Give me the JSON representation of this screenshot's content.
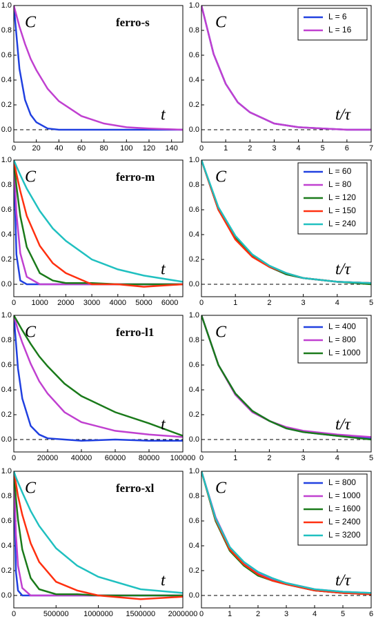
{
  "chart_data": [
    {
      "type": "line",
      "title": "ferro-s",
      "ylabel": "C",
      "xlabel": "t",
      "x": [
        0,
        5,
        10,
        15,
        20,
        30,
        40,
        60,
        80,
        100,
        120,
        150
      ],
      "xlim": [
        0,
        150
      ],
      "xticks": [
        0,
        20,
        40,
        60,
        80,
        100,
        120,
        140
      ],
      "ylim": [
        -0.1,
        1.0
      ],
      "yticks": [
        {
          "value": 0,
          "label": "0.0"
        },
        {
          "value": 0.2,
          "label": "0.2"
        },
        {
          "value": 0.4,
          "label": "0.4"
        },
        {
          "value": 0.6,
          "label": "0.6"
        },
        {
          "value": 0.8,
          "label": "0.8"
        },
        {
          "value": 1,
          "label": "1.0"
        }
      ],
      "hline": 0,
      "series": [
        {
          "name": "L = 6",
          "color": "#2040e0",
          "values": [
            1,
            0.49,
            0.24,
            0.12,
            0.06,
            0.01,
            0,
            0,
            0,
            0,
            0,
            0
          ]
        },
        {
          "name": "L = 16",
          "color": "#c040d0",
          "values": [
            1,
            0.83,
            0.69,
            0.57,
            0.48,
            0.33,
            0.23,
            0.11,
            0.05,
            0.02,
            0.01,
            0
          ]
        }
      ]
    },
    {
      "type": "line",
      "ylabel": "C",
      "xlabel": "t/τ",
      "legend": "upper right",
      "x": [
        0,
        0.5,
        1,
        1.5,
        2,
        3,
        4,
        5,
        6,
        7
      ],
      "xlim": [
        0,
        7
      ],
      "xticks": [
        0,
        1,
        2,
        3,
        4,
        5,
        6,
        7
      ],
      "ylim": [
        -0.1,
        1.0
      ],
      "yticks": [
        {
          "value": 0,
          "label": "0.0"
        },
        {
          "value": 0.2,
          "label": "0.2"
        },
        {
          "value": 0.4,
          "label": "0.4"
        },
        {
          "value": 0.6,
          "label": "0.6"
        },
        {
          "value": 0.8,
          "label": "0.8"
        },
        {
          "value": 1,
          "label": "1.0"
        }
      ],
      "hline": 0,
      "series": [
        {
          "name": "L = 6",
          "color": "#2040e0",
          "values": [
            1,
            0.61,
            0.37,
            0.22,
            0.14,
            0.05,
            0.02,
            0.01,
            0,
            0
          ]
        },
        {
          "name": "L = 16",
          "color": "#c040d0",
          "values": [
            1,
            0.61,
            0.37,
            0.22,
            0.14,
            0.05,
            0.02,
            0.01,
            0,
            0
          ]
        }
      ]
    },
    {
      "type": "line",
      "title": "ferro-m",
      "ylabel": "C",
      "xlabel": "t",
      "x": [
        0,
        100,
        250,
        500,
        1000,
        1500,
        2000,
        3000,
        4000,
        5000,
        6500
      ],
      "xlim": [
        0,
        6500
      ],
      "xticks": [
        0,
        1000,
        2000,
        3000,
        4000,
        5000,
        6000
      ],
      "ylim": [
        -0.1,
        1.0
      ],
      "yticks": [
        {
          "value": 0,
          "label": "0.0"
        },
        {
          "value": 0.2,
          "label": "0.2"
        },
        {
          "value": 0.4,
          "label": "0.4"
        },
        {
          "value": 0.6,
          "label": "0.6"
        },
        {
          "value": 0.8,
          "label": "0.8"
        },
        {
          "value": 1,
          "label": "1.0"
        }
      ],
      "hline": 0,
      "series": [
        {
          "name": "L = 60",
          "color": "#2040e0",
          "values": [
            1,
            0.24,
            0.03,
            0,
            0,
            0,
            0,
            0,
            0,
            0,
            0
          ]
        },
        {
          "name": "L = 80",
          "color": "#c040d0",
          "values": [
            1,
            0.57,
            0.25,
            0.06,
            0,
            0,
            0,
            0,
            0,
            0,
            0
          ]
        },
        {
          "name": "L = 120",
          "color": "#1a7a1a",
          "values": [
            1,
            0.79,
            0.55,
            0.3,
            0.09,
            0.03,
            0.01,
            0.01,
            0,
            0,
            0
          ]
        },
        {
          "name": "L = 150",
          "color": "#ff3010",
          "values": [
            1,
            0.89,
            0.75,
            0.55,
            0.31,
            0.17,
            0.09,
            0,
            0,
            -0.02,
            0
          ]
        },
        {
          "name": "L = 240",
          "color": "#20c0c0",
          "values": [
            1,
            0.95,
            0.88,
            0.77,
            0.59,
            0.45,
            0.35,
            0.2,
            0.12,
            0.07,
            0.02
          ]
        }
      ]
    },
    {
      "type": "line",
      "ylabel": "C",
      "xlabel": "t/τ",
      "legend": "upper right",
      "x": [
        0,
        0.5,
        1,
        1.5,
        2,
        2.5,
        3,
        4,
        5
      ],
      "xlim": [
        0,
        5
      ],
      "xticks": [
        0,
        1,
        2,
        3,
        4,
        5
      ],
      "ylim": [
        -0.1,
        1.0
      ],
      "yticks": [
        {
          "value": 0,
          "label": "0.0"
        },
        {
          "value": 0.2,
          "label": "0.2"
        },
        {
          "value": 0.4,
          "label": "0.4"
        },
        {
          "value": 0.6,
          "label": "0.6"
        },
        {
          "value": 0.8,
          "label": "0.8"
        },
        {
          "value": 1,
          "label": "1.0"
        }
      ],
      "hline": 0,
      "series": [
        {
          "name": "L = 60",
          "color": "#2040e0",
          "values": [
            1,
            0.6,
            0.37,
            0.23,
            0.14,
            0.08,
            0.05,
            0.02,
            0.01
          ]
        },
        {
          "name": "L = 80",
          "color": "#c040d0",
          "values": [
            1,
            0.6,
            0.37,
            0.23,
            0.14,
            0.08,
            0.05,
            0.02,
            0.01
          ]
        },
        {
          "name": "L = 120",
          "color": "#1a7a1a",
          "values": [
            1,
            0.6,
            0.37,
            0.23,
            0.14,
            0.08,
            0.05,
            0.02,
            0
          ]
        },
        {
          "name": "L = 150",
          "color": "#ff3010",
          "values": [
            1,
            0.6,
            0.36,
            0.22,
            0.14,
            0.09,
            0.05,
            0.02,
            0.01
          ]
        },
        {
          "name": "L = 240",
          "color": "#20c0c0",
          "values": [
            1,
            0.62,
            0.39,
            0.24,
            0.15,
            0.09,
            0.05,
            0.02,
            0.01
          ]
        }
      ]
    },
    {
      "type": "line",
      "title": "ferro-l1",
      "ylabel": "C",
      "xlabel": "t",
      "x": [
        0,
        2500,
        5000,
        10000,
        15000,
        20000,
        30000,
        40000,
        60000,
        80000,
        100000
      ],
      "xlim": [
        0,
        100000
      ],
      "xticks": [
        0,
        20000,
        40000,
        60000,
        80000,
        100000
      ],
      "ylim": [
        -0.1,
        1.0
      ],
      "yticks": [
        {
          "value": 0,
          "label": "0.0"
        },
        {
          "value": 0.2,
          "label": "0.2"
        },
        {
          "value": 0.4,
          "label": "0.4"
        },
        {
          "value": 0.6,
          "label": "0.6"
        },
        {
          "value": 0.8,
          "label": "0.8"
        },
        {
          "value": 1,
          "label": "1.0"
        }
      ],
      "hline": 0,
      "series": [
        {
          "name": "L = 400",
          "color": "#2040e0",
          "values": [
            1,
            0.57,
            0.33,
            0.11,
            0.04,
            0.01,
            0,
            -0.01,
            0,
            -0.01,
            -0.01
          ]
        },
        {
          "name": "L = 800",
          "color": "#c040d0",
          "values": [
            1,
            0.88,
            0.78,
            0.61,
            0.47,
            0.37,
            0.22,
            0.14,
            0.07,
            0.04,
            0.02
          ]
        },
        {
          "name": "L = 1000",
          "color": "#1a7a1a",
          "values": [
            1,
            0.94,
            0.88,
            0.77,
            0.67,
            0.59,
            0.45,
            0.35,
            0.22,
            0.13,
            0.03
          ]
        }
      ]
    },
    {
      "type": "line",
      "ylabel": "C",
      "xlabel": "t/τ",
      "legend": "upper right",
      "x": [
        0,
        0.5,
        1,
        1.5,
        2,
        2.5,
        3,
        4,
        5
      ],
      "xlim": [
        0,
        5
      ],
      "xticks": [
        0,
        1,
        2,
        3,
        4,
        5
      ],
      "ylim": [
        -0.1,
        1.0
      ],
      "yticks": [
        {
          "value": 0,
          "label": "0.0"
        },
        {
          "value": 0.2,
          "label": "0.2"
        },
        {
          "value": 0.4,
          "label": "0.4"
        },
        {
          "value": 0.6,
          "label": "0.6"
        },
        {
          "value": 0.8,
          "label": "0.8"
        },
        {
          "value": 1,
          "label": "1.0"
        }
      ],
      "hline": 0,
      "series": [
        {
          "name": "L = 400",
          "color": "#2040e0",
          "values": [
            1,
            0.6,
            0.37,
            0.23,
            0.15,
            0.09,
            0.06,
            0.03,
            0.01
          ]
        },
        {
          "name": "L = 800",
          "color": "#c040d0",
          "values": [
            1,
            0.6,
            0.36,
            0.22,
            0.15,
            0.1,
            0.07,
            0.04,
            0.02
          ]
        },
        {
          "name": "L = 1000",
          "color": "#1a7a1a",
          "values": [
            1,
            0.6,
            0.37,
            0.23,
            0.15,
            0.09,
            0.06,
            0.03,
            0
          ]
        }
      ]
    },
    {
      "type": "line",
      "title": "ferro-xl",
      "ylabel": "C",
      "xlabel": "t",
      "x": [
        0,
        25000,
        50000,
        100000,
        200000,
        300000,
        500000,
        750000,
        1000000,
        1500000,
        2000000
      ],
      "xlim": [
        0,
        2000000
      ],
      "xticks": [
        0,
        500000,
        1000000,
        1500000,
        2000000
      ],
      "ylim": [
        -0.1,
        1.0
      ],
      "yticks": [
        {
          "value": 0,
          "label": "0.0"
        },
        {
          "value": 0.2,
          "label": "0.2"
        },
        {
          "value": 0.4,
          "label": "0.4"
        },
        {
          "value": 0.6,
          "label": "0.6"
        },
        {
          "value": 0.8,
          "label": "0.8"
        },
        {
          "value": 1,
          "label": "1.0"
        }
      ],
      "hline": 0,
      "series": [
        {
          "name": "L = 800",
          "color": "#2040e0",
          "values": [
            1,
            0.19,
            0.04,
            0,
            0,
            0,
            0,
            0,
            0,
            0,
            0
          ]
        },
        {
          "name": "L = 1000",
          "color": "#c040d0",
          "values": [
            1,
            0.49,
            0.24,
            0.06,
            0,
            0,
            0,
            0,
            0,
            0,
            0
          ]
        },
        {
          "name": "L = 1600",
          "color": "#1a7a1a",
          "values": [
            1,
            0.78,
            0.61,
            0.37,
            0.14,
            0.05,
            0.01,
            0.01,
            0,
            0,
            0
          ]
        },
        {
          "name": "L = 2400",
          "color": "#ff3010",
          "values": [
            1,
            0.9,
            0.8,
            0.65,
            0.42,
            0.27,
            0.11,
            0.04,
            0,
            -0.03,
            -0.01
          ]
        },
        {
          "name": "L = 3200",
          "color": "#20c0c0",
          "values": [
            1,
            0.95,
            0.91,
            0.83,
            0.68,
            0.56,
            0.38,
            0.24,
            0.15,
            0.05,
            0.02
          ]
        }
      ]
    },
    {
      "type": "line",
      "ylabel": "C",
      "xlabel": "t/τ",
      "legend": "upper right",
      "x": [
        0,
        0.5,
        1,
        1.5,
        2,
        2.5,
        3,
        4,
        5,
        6
      ],
      "xlim": [
        0,
        6
      ],
      "xticks": [
        0,
        1,
        2,
        3,
        4,
        5,
        6
      ],
      "ylim": [
        -0.1,
        1.0
      ],
      "yticks": [
        {
          "value": 0,
          "label": "0.0"
        },
        {
          "value": 0.2,
          "label": "0.2"
        },
        {
          "value": 0.4,
          "label": "0.4"
        },
        {
          "value": 0.6,
          "label": "0.6"
        },
        {
          "value": 0.8,
          "label": "0.8"
        },
        {
          "value": 1,
          "label": "1.0"
        }
      ],
      "hline": 0,
      "series": [
        {
          "name": "L = 800",
          "color": "#2040e0",
          "values": [
            1,
            0.62,
            0.38,
            0.25,
            0.17,
            0.12,
            0.09,
            0.04,
            0.02,
            0.01
          ]
        },
        {
          "name": "L = 1000",
          "color": "#c040d0",
          "values": [
            1,
            0.63,
            0.39,
            0.26,
            0.18,
            0.13,
            0.1,
            0.05,
            0.03,
            0.02
          ]
        },
        {
          "name": "L = 1600",
          "color": "#1a7a1a",
          "values": [
            1,
            0.6,
            0.36,
            0.24,
            0.16,
            0.12,
            0.09,
            0.04,
            0.02,
            0.01
          ]
        },
        {
          "name": "L = 2400",
          "color": "#ff3010",
          "values": [
            1,
            0.61,
            0.37,
            0.25,
            0.17,
            0.12,
            0.09,
            0.04,
            0.02,
            0.01
          ]
        },
        {
          "name": "L = 3200",
          "color": "#20c0c0",
          "values": [
            1,
            0.62,
            0.39,
            0.27,
            0.19,
            0.14,
            0.1,
            0.05,
            0.03,
            0.02
          ]
        }
      ]
    }
  ]
}
